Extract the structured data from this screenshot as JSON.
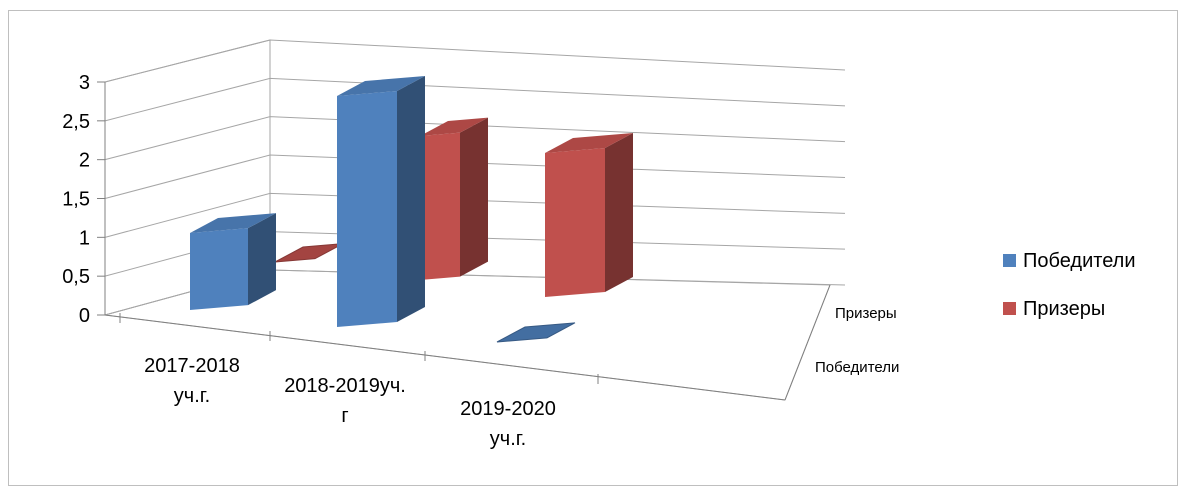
{
  "chart_data": {
    "type": "bar",
    "title": "",
    "xlabel": "",
    "ylabel": "",
    "categories": [
      "2017-2018 уч.г.",
      "2018-2019уч. г",
      "2019-2020 уч.г."
    ],
    "category_lines": [
      [
        "2017-2018",
        "уч.г."
      ],
      [
        "2018-2019уч.",
        "г"
      ],
      [
        "2019-2020",
        "уч.г."
      ]
    ],
    "series": [
      {
        "name": "Победители",
        "values": [
          1,
          3,
          0
        ],
        "color": "#4f81bd"
      },
      {
        "name": "Призеры",
        "values": [
          0,
          2,
          2
        ],
        "color": "#c0504d"
      }
    ],
    "depth_labels": [
      "Призеры",
      "Победители"
    ],
    "y_ticks": [
      "0",
      "0,5",
      "1",
      "1,5",
      "2",
      "2,5",
      "3"
    ],
    "ylim": [
      0,
      3
    ],
    "grid": true,
    "legend_position": "right",
    "style": "3d-column"
  }
}
